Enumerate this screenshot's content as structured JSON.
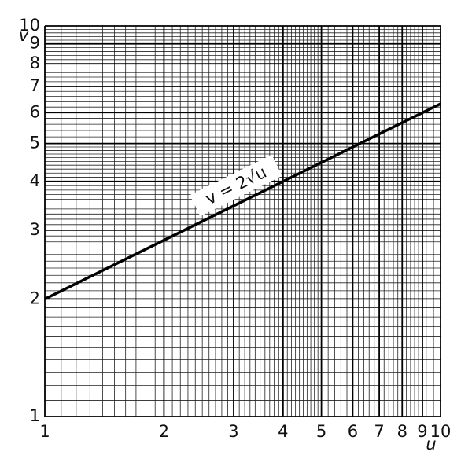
{
  "chart_data": {
    "type": "line",
    "xlabel": "u",
    "ylabel": "v",
    "log_x": true,
    "log_y": true,
    "grid": true,
    "xlim": [
      1,
      10
    ],
    "ylim": [
      1,
      10
    ],
    "xticks": [
      1,
      2,
      3,
      4,
      5,
      6,
      7,
      8,
      9,
      10
    ],
    "yticks": [
      1,
      2,
      3,
      4,
      5,
      6,
      7,
      8,
      9,
      10
    ],
    "minor_grid": [
      1.1,
      1.2,
      1.3,
      1.4,
      1.5,
      1.6,
      1.7,
      1.8,
      1.9,
      2.1,
      2.2,
      2.3,
      2.4,
      2.5,
      2.6,
      2.7,
      2.8,
      2.9,
      3.1,
      3.2,
      3.3,
      3.4,
      3.5,
      3.6,
      3.7,
      3.8,
      3.9,
      4.1,
      4.2,
      4.3,
      4.4,
      4.5,
      4.6,
      4.7,
      4.8,
      4.9,
      5.2,
      5.4,
      5.6,
      5.8,
      6.2,
      6.4,
      6.6,
      6.8,
      7.2,
      7.4,
      7.6,
      7.8,
      8.2,
      8.4,
      8.6,
      8.8,
      9.2,
      9.4,
      9.6,
      9.8
    ],
    "x": [
      1,
      10
    ],
    "series": [
      {
        "color": "#000000",
        "values": [
          2,
          6.32
        ]
      }
    ],
    "annotation": "v = 2√u"
  }
}
